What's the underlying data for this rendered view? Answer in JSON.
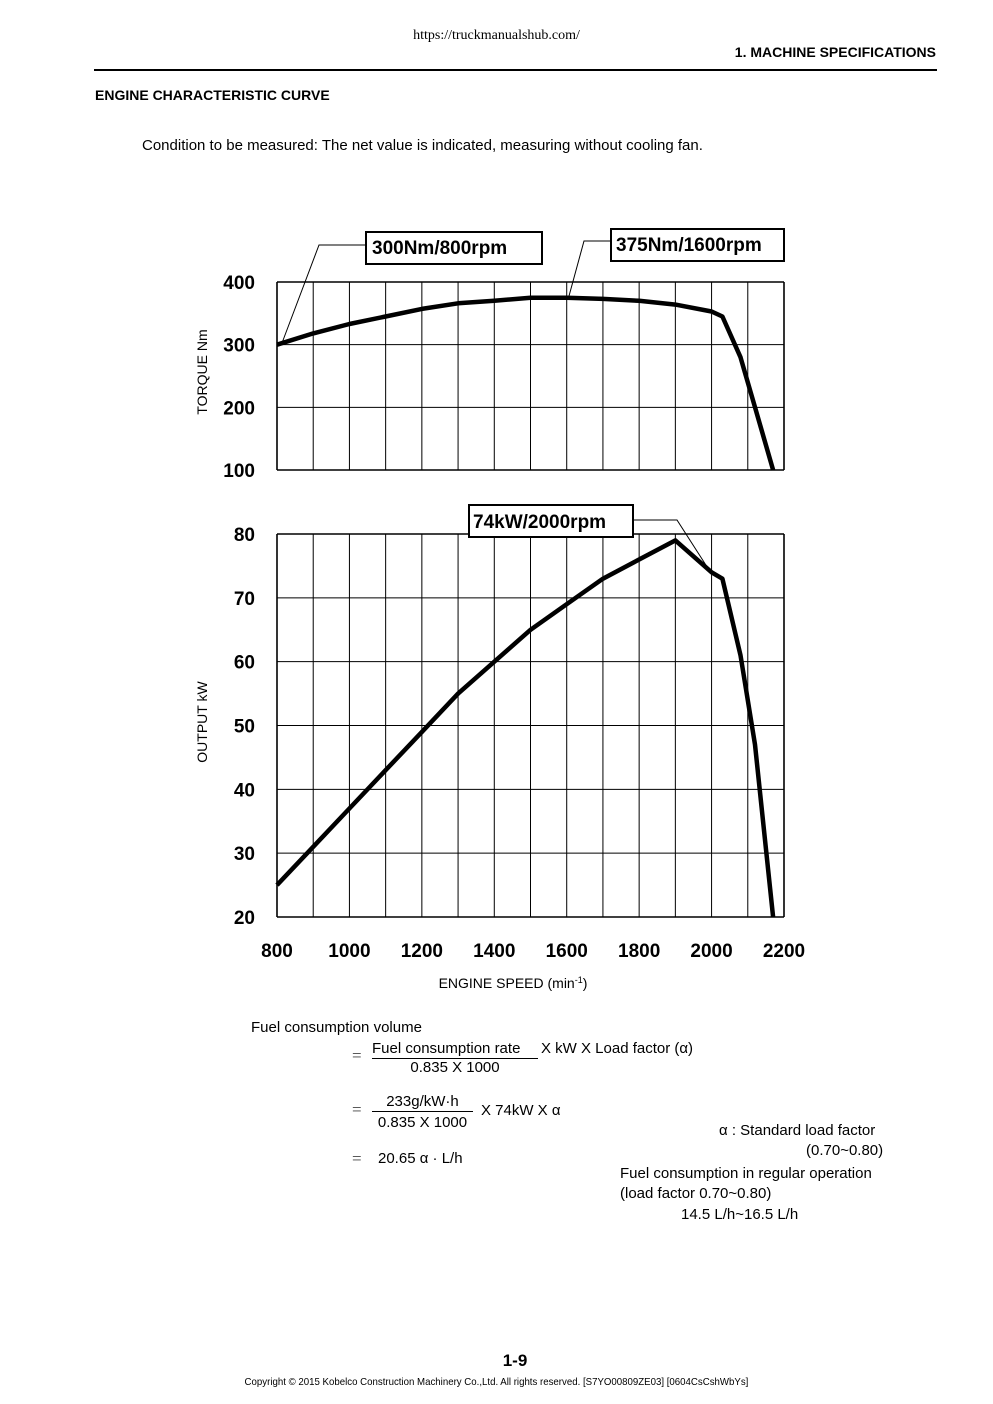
{
  "header": {
    "url": "https://truckmanualshub.com/",
    "section": "1. MACHINE SPECIFICATIONS"
  },
  "heading": "ENGINE CHARACTERISTIC CURVE",
  "condition": "Condition to be measured: The net value is indicated, measuring without cooling fan.",
  "chart_data": [
    {
      "type": "line",
      "title": "",
      "ylabel": "TORQUE Nm",
      "xlabel": "",
      "xlim": [
        800,
        2200
      ],
      "ylim": [
        100,
        400
      ],
      "yticks": [
        400,
        300,
        200,
        100
      ],
      "grid": true,
      "annotations": [
        "300Nm/800rpm",
        "375Nm/1600rpm"
      ],
      "series": [
        {
          "values": [
            [
              800,
              300
            ],
            [
              900,
              318
            ],
            [
              1000,
              333
            ],
            [
              1100,
              345
            ],
            [
              1200,
              357
            ],
            [
              1300,
              366
            ],
            [
              1400,
              370
            ],
            [
              1500,
              375
            ],
            [
              1600,
              375
            ],
            [
              1700,
              373
            ],
            [
              1800,
              370
            ],
            [
              1900,
              364
            ],
            [
              2000,
              353
            ],
            [
              2030,
              345
            ],
            [
              2080,
              280
            ],
            [
              2120,
              200
            ],
            [
              2170,
              100
            ]
          ]
        }
      ]
    },
    {
      "type": "line",
      "title": "",
      "ylabel": "OUTPUT kW",
      "xlabel": "ENGINE SPEED (min-1)",
      "xlim": [
        800,
        2200
      ],
      "ylim": [
        20,
        80
      ],
      "xticks": [
        800,
        1000,
        1200,
        1400,
        1600,
        1800,
        2000,
        2200
      ],
      "yticks": [
        80,
        70,
        60,
        50,
        40,
        30,
        20
      ],
      "grid": true,
      "annotations": [
        "74kW/2000rpm"
      ],
      "series": [
        {
          "values": [
            [
              800,
              25
            ],
            [
              900,
              31
            ],
            [
              1000,
              37
            ],
            [
              1100,
              43
            ],
            [
              1200,
              49
            ],
            [
              1300,
              55
            ],
            [
              1400,
              60
            ],
            [
              1500,
              65
            ],
            [
              1600,
              69
            ],
            [
              1700,
              73
            ],
            [
              1800,
              76
            ],
            [
              1900,
              79
            ],
            [
              2000,
              74
            ],
            [
              2030,
              73
            ],
            [
              2080,
              61
            ],
            [
              2120,
              47
            ],
            [
              2170,
              20
            ]
          ]
        }
      ]
    }
  ],
  "fuel": {
    "title": "Fuel consumption volume",
    "eq_sign": "=",
    "line1_num": "Fuel consumption rate",
    "line1_rest": "X kW X Load factor (α)",
    "line1_den": "0.835 X 1000",
    "line2_num": "233g/kW·h",
    "line2_den": "0.835 X 1000",
    "line2_rest": "X  74kW X α",
    "line3": "20.65 α · L/h",
    "alpha_note": "α : Standard load factor",
    "alpha_range": "(0.70~0.80)",
    "regular_1": "Fuel consumption in regular operation",
    "regular_2": "(load factor 0.70~0.80)",
    "regular_3": "14.5 L/h~16.5 L/h"
  },
  "footer": {
    "page": "1-9",
    "copyright": "Copyright © 2015 Kobelco Construction Machinery Co.,Ltd. All rights reserved. [S7YO00809ZE03]  [0604CsCshWbYs]"
  }
}
